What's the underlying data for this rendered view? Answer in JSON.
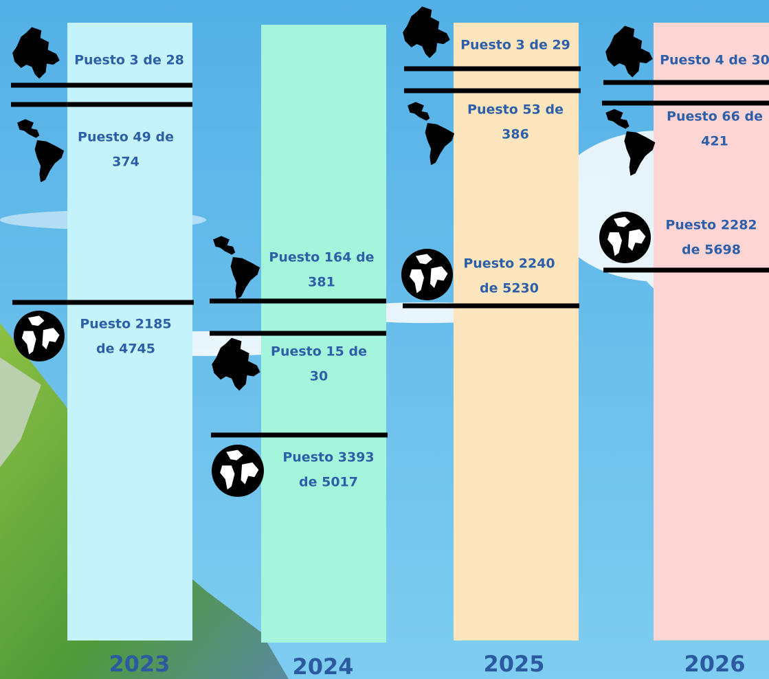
{
  "columns": [
    {
      "year": "2023",
      "entries": [
        {
          "lines": [
            "Puesto 3 de 28"
          ]
        },
        {
          "lines": [
            "Puesto 49 de",
            "374"
          ]
        },
        {
          "lines": [
            "Puesto 2185",
            "de 4745"
          ]
        }
      ]
    },
    {
      "year": "2024",
      "entries": [
        {
          "lines": [
            "Puesto 164 de",
            "381"
          ]
        },
        {
          "lines": [
            "Puesto 15 de",
            "30"
          ]
        },
        {
          "lines": [
            "Puesto 3393",
            "de 5017"
          ]
        }
      ]
    },
    {
      "year": "2025",
      "entries": [
        {
          "lines": [
            "Puesto 3 de 29"
          ]
        },
        {
          "lines": [
            "Puesto 53 de",
            "386"
          ]
        },
        {
          "lines": [
            "Puesto 2240",
            "de 5230"
          ]
        }
      ]
    },
    {
      "year": "2026",
      "entries": [
        {
          "lines": [
            "Puesto 4 de 30"
          ]
        },
        {
          "lines": [
            "Puesto 66 de",
            "421"
          ]
        },
        {
          "lines": [
            "Puesto 2282",
            "de 5698"
          ]
        }
      ]
    }
  ]
}
